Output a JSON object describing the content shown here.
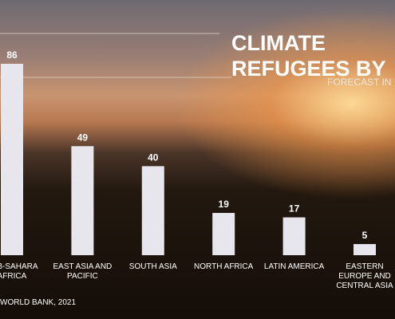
{
  "chart_data": {
    "type": "bar",
    "title": "CLIMATE REFUGEES BY",
    "subtitle": "FORECAST IN",
    "source": "WORLD BANK, 2021",
    "categories": [
      "SUB-SAHARA AFRICA",
      "EAST ASIA AND PACIFIC",
      "SOUTH ASIA",
      "NORTH AFRICA",
      "LATIN AMERICA",
      "EASTERN EUROPE AND CENTRAL ASIA"
    ],
    "values": [
      86,
      49,
      40,
      19,
      17,
      5
    ],
    "color": "#e6e6ec"
  }
}
